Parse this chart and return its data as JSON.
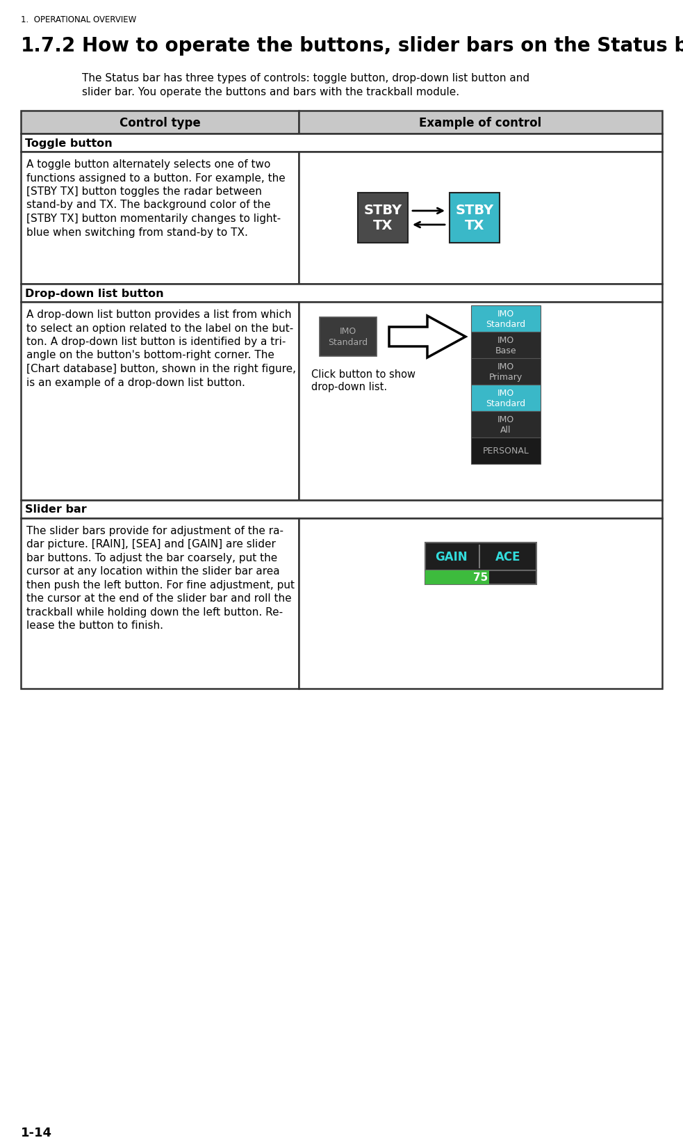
{
  "page_header": "1.  OPERATIONAL OVERVIEW",
  "section_num": "1.7.2",
  "section_title": "How to operate the buttons, slider bars on the Status bar",
  "intro_text1": "The Status bar has three types of controls: toggle button, drop-down list button and",
  "intro_text2": "slider bar. You operate the buttons and bars with the trackball module.",
  "col1_header": "Control type",
  "col2_header": "Example of control",
  "row1_label": "Toggle button",
  "row1_lines": [
    "A toggle button alternately selects one of two",
    "functions assigned to a button. For example, the",
    "[STBY TX] button toggles the radar between",
    "stand-by and TX. The background color of the",
    "[STBY TX] button momentarily changes to light-",
    "blue when switching from stand-by to TX."
  ],
  "row2_label": "Drop-down list button",
  "row2_lines": [
    "A drop-down list button provides a list from which",
    "to select an option related to the label on the but-",
    "ton. A drop-down list button is identified by a tri-",
    "angle on the button's bottom-right corner. The",
    "[Chart database] button, shown in the right figure,",
    "is an example of a drop-down list button."
  ],
  "row3_label": "Slider bar",
  "row3_lines": [
    "The slider bars provide for adjustment of the ra-",
    "dar picture. [RAIN], [SEA] and [GAIN] are slider",
    "bar buttons. To adjust the bar coarsely, put the",
    "cursor at any location within the slider bar area",
    "then push the left button. For fine adjustment, put",
    "the cursor at the end of the slider bar and roll the",
    "trackball while holding down the left button. Re-",
    "lease the button to finish."
  ],
  "dropdown_caption1": "Click button to show",
  "dropdown_caption2": "drop-down list.",
  "dropdown_items": [
    "IMO\nStandard",
    "IMO\nBase",
    "IMO\nPrimary",
    "IMO\nStandard",
    "IMO\nAll",
    "PERSONAL"
  ],
  "dropdown_colors": [
    "#3ab8c8",
    "#2a2a2a",
    "#2a2a2a",
    "#3ab8c8",
    "#2a2a2a",
    "#1a1a1a"
  ],
  "dropdown_text_colors": [
    "#ffffff",
    "#bbbbbb",
    "#bbbbbb",
    "#ffffff",
    "#bbbbbb",
    "#aaaaaa"
  ],
  "page_footer": "1-14",
  "bg_color": "#ffffff",
  "table_border_color": "#333333",
  "header_bg": "#c8c8c8",
  "stby_dark_color": "#4a4a4a",
  "stby_light_color": "#3ab8c8",
  "imo_btn_color": "#4a4a4a",
  "slider_bg": "#1e1e1e",
  "slider_border": "#666666",
  "slider_green": "#3dbb3d",
  "gain_text_color": "#33dddd"
}
